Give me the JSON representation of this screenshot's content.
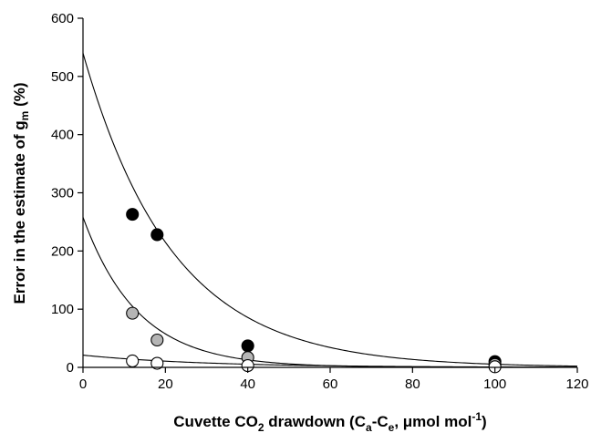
{
  "chart_data": {
    "type": "scatter",
    "xlabel": {
      "main": "Cuvette CO",
      "sub2": "2",
      "mid": " drawdown (C",
      "subA": "a",
      "dash": "-C",
      "subE": "e",
      "rest": ", μmol mol",
      "sup": "-1",
      "close": ")"
    },
    "ylabel": {
      "main": "Error in the estimate of g",
      "sub": "m",
      "rest": " (%)"
    },
    "xlim": [
      0,
      120
    ],
    "ylim": [
      0,
      600
    ],
    "x_ticks": [
      "0",
      "20",
      "40",
      "60",
      "80",
      "100",
      "120"
    ],
    "y_ticks": [
      "0",
      "100",
      "200",
      "300",
      "400",
      "500",
      "600"
    ],
    "grid": false,
    "series": [
      {
        "color": "#000000",
        "points": [
          [
            12,
            263
          ],
          [
            18,
            228
          ],
          [
            40,
            37
          ],
          [
            100,
            10
          ]
        ],
        "fit": {
          "a": 540,
          "k": 0.046
        }
      },
      {
        "color": "#b5b5b5",
        "points": [
          [
            12,
            93
          ],
          [
            18,
            47
          ],
          [
            40,
            17
          ],
          [
            100,
            5
          ]
        ],
        "fit": {
          "a": 258,
          "k": 0.075
        }
      },
      {
        "color": "#ffffff",
        "points": [
          [
            12,
            11
          ],
          [
            18,
            7
          ],
          [
            40,
            3
          ],
          [
            100,
            1
          ]
        ],
        "fit": {
          "a": 21,
          "k": 0.034
        }
      }
    ]
  }
}
